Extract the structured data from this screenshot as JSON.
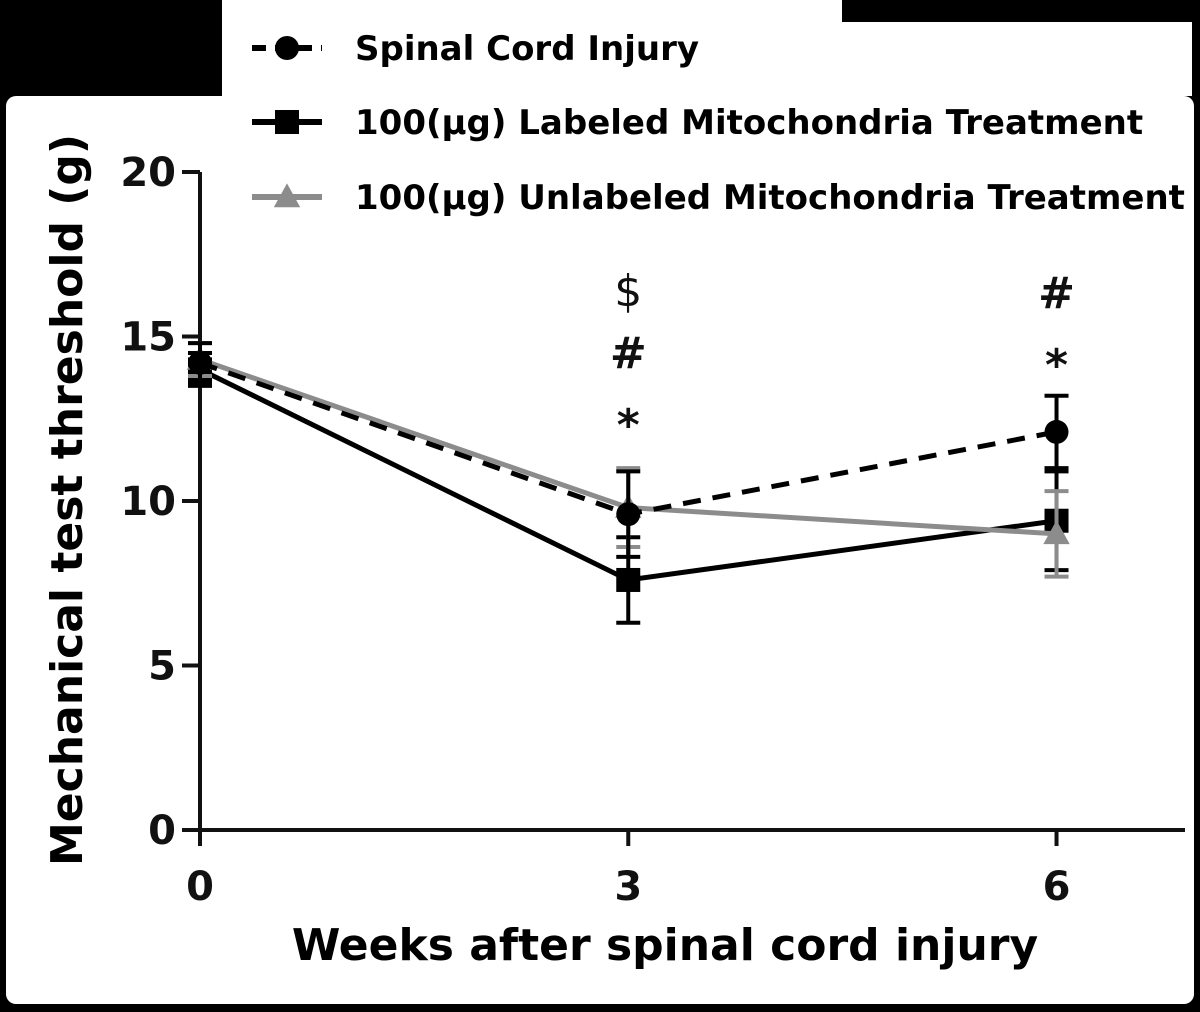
{
  "chart_data": {
    "type": "line",
    "title": "",
    "xlabel": "Weeks after spinal cord injury",
    "ylabel": "Mechanical test threshold  (g)",
    "x": [
      0,
      3,
      6
    ],
    "x_tick_labels": [
      "0",
      "3",
      "6"
    ],
    "y_tick_labels": [
      "0",
      "5",
      "10",
      "15",
      "20"
    ],
    "y_ticks": [
      0,
      5,
      10,
      15,
      20
    ],
    "xlim": [
      0,
      6.9
    ],
    "ylim": [
      0,
      20
    ],
    "grid": false,
    "legend_position": "top",
    "series": [
      {
        "name": "Spinal Cord Injury",
        "values": [
          14.2,
          9.6,
          12.1
        ],
        "error": [
          0.6,
          1.3,
          1.1
        ],
        "marker": "circle",
        "line_style": "dashed",
        "color": "#000000"
      },
      {
        "name": "100(μg) Labeled Mitochondria Treatment",
        "values": [
          14.0,
          7.6,
          9.4
        ],
        "error": [
          0.5,
          1.3,
          1.5
        ],
        "marker": "square",
        "line_style": "solid",
        "color": "#000000"
      },
      {
        "name": "100(μg) Unlabeled Mitochondria Treatment",
        "values": [
          14.3,
          9.8,
          9.0
        ],
        "error": [
          0.5,
          1.2,
          1.3
        ],
        "marker": "triangle",
        "line_style": "solid",
        "color": "#8c8c8c"
      }
    ],
    "annotations": [
      {
        "x": 3,
        "marks": [
          "$",
          "#",
          "*"
        ]
      },
      {
        "x": 6,
        "marks": [
          "#",
          "*"
        ]
      }
    ]
  }
}
